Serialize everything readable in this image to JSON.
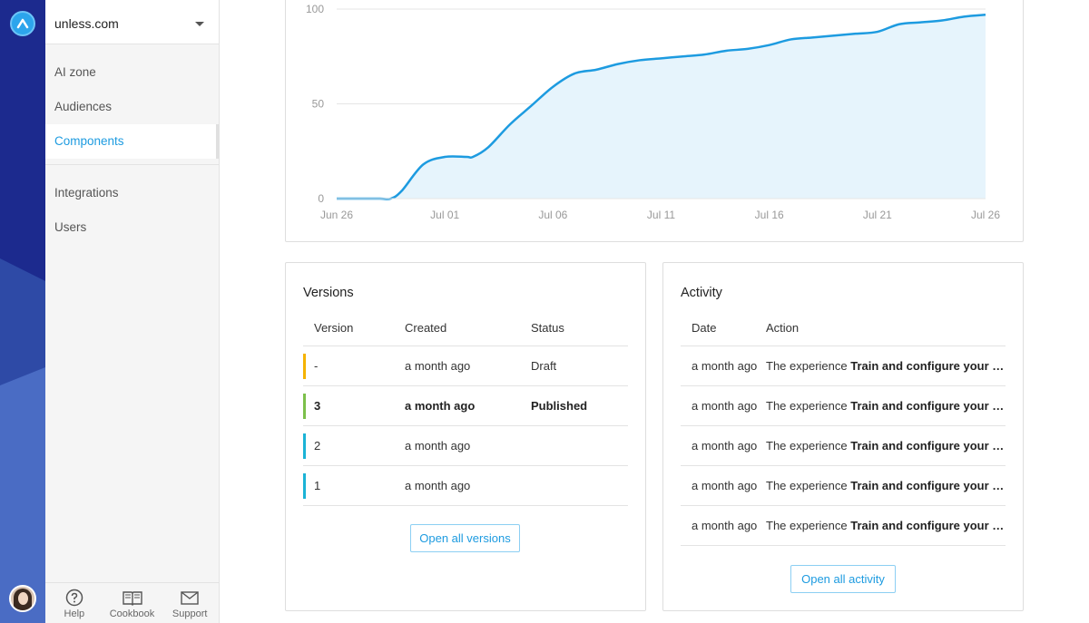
{
  "sidebar": {
    "site": "unless.com",
    "items_top": [
      {
        "label": "AI zone"
      },
      {
        "label": "Audiences"
      },
      {
        "label": "Components",
        "active": true
      }
    ],
    "items_bottom": [
      {
        "label": "Integrations"
      },
      {
        "label": "Users"
      }
    ],
    "footer": {
      "help": "Help",
      "cookbook": "Cookbook",
      "support": "Support"
    }
  },
  "colors": {
    "accent": "#1d9be0",
    "rail": "#1c2a8e",
    "draft": "#f5b300",
    "published": "#7cc04b",
    "archived": "#1bb3d6",
    "area_fill": "#e6f4fc"
  },
  "chart_data": {
    "type": "area",
    "title": "",
    "xlabel": "",
    "ylabel": "",
    "ylim": [
      0,
      100
    ],
    "yticks": [
      0,
      50,
      100
    ],
    "xticks": [
      "Jun 26",
      "Jul 01",
      "Jul 06",
      "Jul 11",
      "Jul 16",
      "Jul 21",
      "Jul 26"
    ],
    "grid": true,
    "x": [
      0,
      1,
      2,
      2.5,
      3,
      4,
      5,
      6,
      6.3,
      7,
      8,
      9,
      10,
      11,
      12,
      13,
      14,
      15,
      16,
      17,
      18,
      19,
      20,
      21,
      22,
      23,
      24,
      25,
      26,
      27,
      28,
      29,
      30
    ],
    "values": [
      0,
      0,
      0,
      0,
      4,
      18,
      22,
      22,
      22,
      27,
      39,
      49,
      59,
      66,
      68,
      71,
      73,
      74,
      75,
      76,
      78,
      79,
      81,
      84,
      85,
      86,
      87,
      88,
      92,
      93,
      94,
      96,
      97
    ]
  },
  "versions": {
    "title": "Versions",
    "columns": [
      "Version",
      "Created",
      "Status"
    ],
    "rows": [
      {
        "version": "-",
        "created": "a month ago",
        "status": "Draft",
        "color": "#f5b300",
        "bold": false
      },
      {
        "version": "3",
        "created": "a month ago",
        "status": "Published",
        "color": "#7cc04b",
        "bold": true
      },
      {
        "version": "2",
        "created": "a month ago",
        "status": "",
        "color": "#1bb3d6",
        "bold": false
      },
      {
        "version": "1",
        "created": "a month ago",
        "status": "",
        "color": "#1bb3d6",
        "bold": false
      }
    ],
    "button": "Open all versions"
  },
  "activity": {
    "title": "Activity",
    "columns": [
      "Date",
      "Action"
    ],
    "rows": [
      {
        "date": "a month ago",
        "prefix": "The experience ",
        "name": "Train and configure your …"
      },
      {
        "date": "a month ago",
        "prefix": "The experience ",
        "name": "Train and configure your …"
      },
      {
        "date": "a month ago",
        "prefix": "The experience ",
        "name": "Train and configure your …"
      },
      {
        "date": "a month ago",
        "prefix": "The experience ",
        "name": "Train and configure your …"
      },
      {
        "date": "a month ago",
        "prefix": "The experience ",
        "name": "Train and configure your …"
      }
    ],
    "button": "Open all activity"
  }
}
